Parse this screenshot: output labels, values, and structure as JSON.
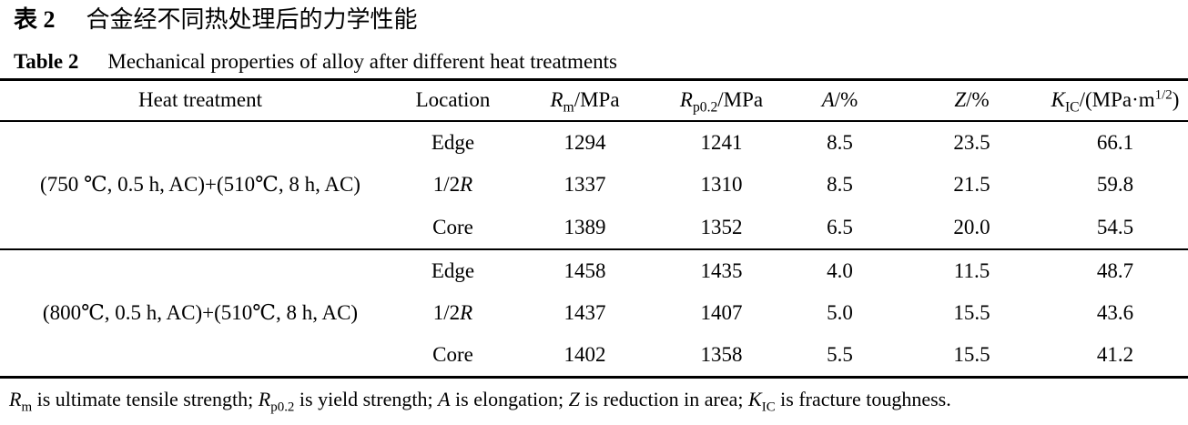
{
  "page": {
    "title_zh": {
      "label": "表 2",
      "text": "合金经不同热处理后的力学性能"
    },
    "title_en": {
      "label": "Table 2",
      "text": "Mechanical properties of alloy after different heat treatments"
    }
  },
  "table": {
    "headers": {
      "heat_treatment": "Heat treatment",
      "location": "Location",
      "rm": {
        "sym": "R",
        "sub": "m",
        "post": "/MPa"
      },
      "rp02": {
        "sym": "R",
        "sub": "p0.2",
        "post": "/MPa"
      },
      "a": {
        "sym": "A",
        "post": "/%"
      },
      "z": {
        "sym": "Z",
        "post": "/%"
      },
      "kic": {
        "sym": "K",
        "sub": "IC",
        "mid": "/(MPa·m",
        "sup": "1/2",
        "post": ")"
      }
    },
    "groups": [
      {
        "heat_treatment": "(750 ℃, 0.5 h, AC)+(510℃, 8 h, AC)",
        "rows": [
          {
            "loc": "Edge",
            "loc_it": "",
            "rm": "1294",
            "rp02": "1241",
            "a": "8.5",
            "z": "23.5",
            "kic": "66.1"
          },
          {
            "loc": "1/2",
            "loc_it": "R",
            "rm": "1337",
            "rp02": "1310",
            "a": "8.5",
            "z": "21.5",
            "kic": "59.8"
          },
          {
            "loc": "Core",
            "loc_it": "",
            "rm": "1389",
            "rp02": "1352",
            "a": "6.5",
            "z": "20.0",
            "kic": "54.5"
          }
        ]
      },
      {
        "heat_treatment": "(800℃, 0.5 h, AC)+(510℃, 8 h, AC)",
        "rows": [
          {
            "loc": "Edge",
            "loc_it": "",
            "rm": "1458",
            "rp02": "1435",
            "a": "4.0",
            "z": "11.5",
            "kic": "48.7"
          },
          {
            "loc": "1/2",
            "loc_it": "R",
            "rm": "1437",
            "rp02": "1407",
            "a": "5.0",
            "z": "15.5",
            "kic": "43.6"
          },
          {
            "loc": "Core",
            "loc_it": "",
            "rm": "1402",
            "rp02": "1358",
            "a": "5.5",
            "z": "15.5",
            "kic": "41.2"
          }
        ]
      }
    ]
  },
  "footnote": {
    "s1_sym": "R",
    "s1_sub": "m",
    "s1_text": " is ultimate tensile strength; ",
    "s2_sym": "R",
    "s2_sub": "p0.2",
    "s2_text": " is yield strength; ",
    "s3_sym": "A",
    "s3_text": " is elongation; ",
    "s4_sym": "Z",
    "s4_text": " is reduction in area; ",
    "s5_sym": "K",
    "s5_sub": "IC",
    "s5_text": " is fracture toughness."
  },
  "colors": {
    "text": "#000000",
    "background": "#ffffff",
    "rule": "#000000"
  }
}
